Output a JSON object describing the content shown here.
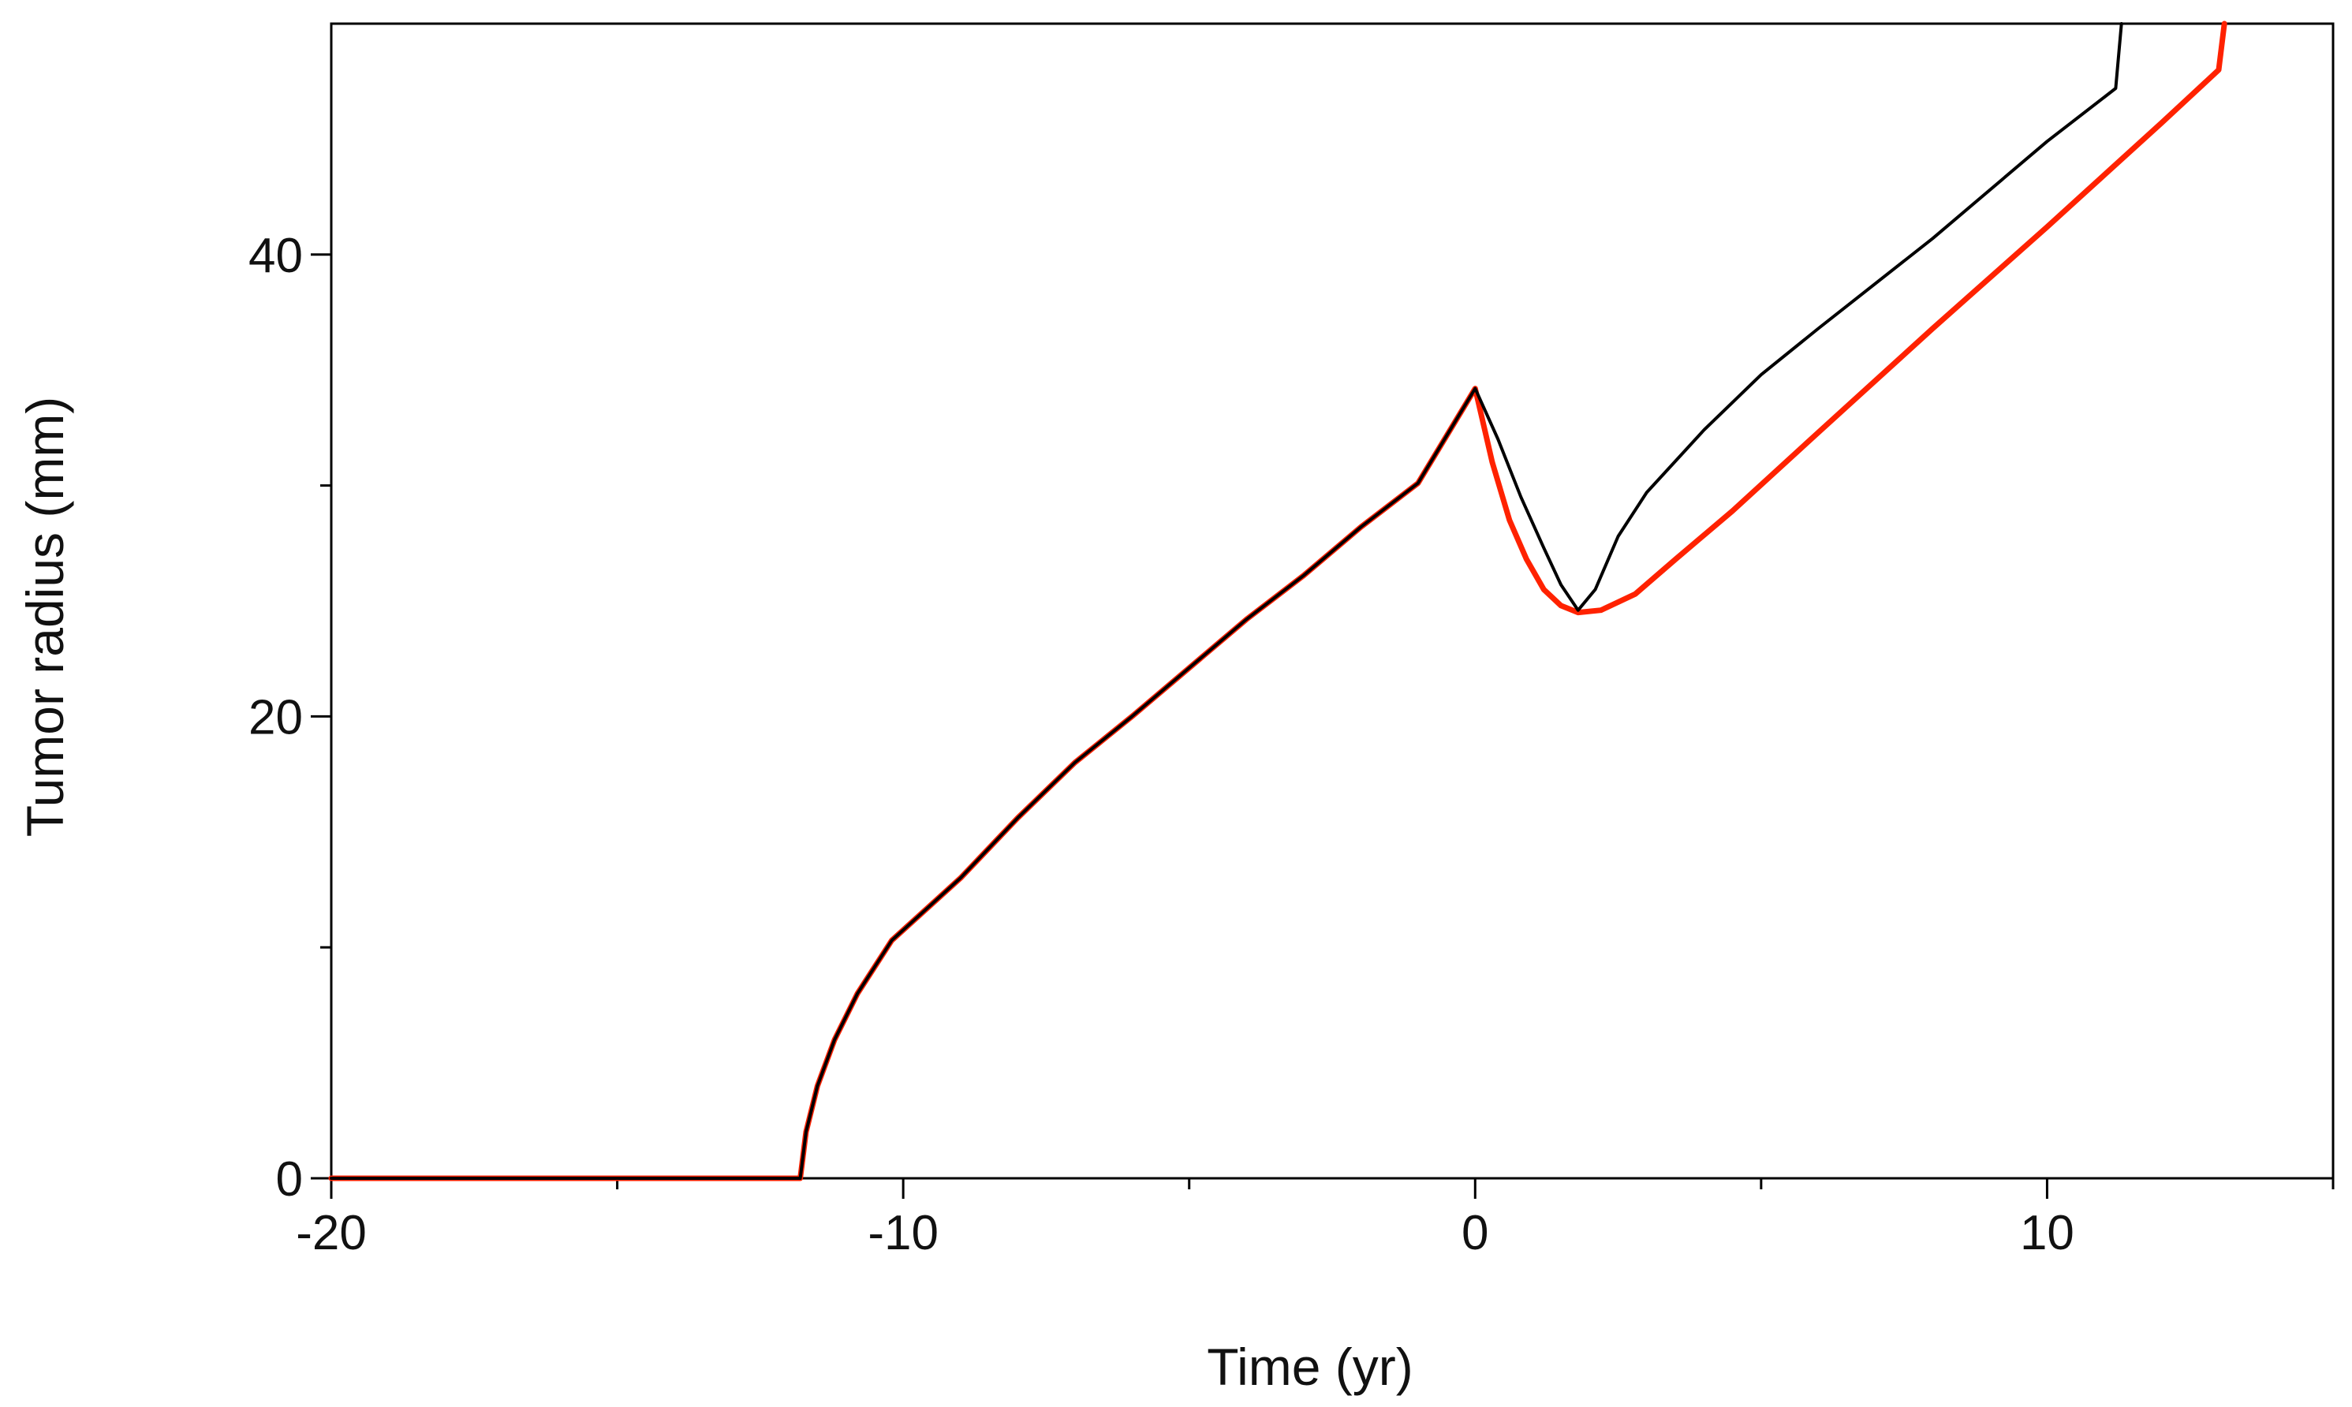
{
  "chart_data": {
    "type": "line",
    "title": "",
    "xlabel": "Time (yr)",
    "ylabel": "Tumor radius (mm)",
    "xlim": [
      -20,
      15
    ],
    "ylim": [
      0,
      50
    ],
    "x_major_ticks": [
      -20,
      -10,
      0,
      10
    ],
    "x_minor_ticks": [
      -15,
      -5,
      5,
      15
    ],
    "x_tick_labels": [
      "-20",
      "-10",
      "0",
      "10"
    ],
    "y_major_ticks": [
      0,
      20,
      40
    ],
    "y_minor_ticks": [
      10,
      30
    ],
    "y_tick_labels": [
      "0",
      "20",
      "40"
    ],
    "grid": false,
    "legend": "none",
    "series": [
      {
        "color": "#ff2200",
        "points": [
          [
            -20,
            0
          ],
          [
            -11.8,
            0
          ],
          [
            -11.7,
            2
          ],
          [
            -11.5,
            4
          ],
          [
            -11.2,
            6
          ],
          [
            -10.8,
            8
          ],
          [
            -10.2,
            10.3
          ],
          [
            -9,
            13
          ],
          [
            -8,
            15.6
          ],
          [
            -7,
            18
          ],
          [
            -6,
            20
          ],
          [
            -5,
            22.1
          ],
          [
            -4,
            24.2
          ],
          [
            -3,
            26.1
          ],
          [
            -2,
            28.2
          ],
          [
            -1,
            30.1
          ],
          [
            0,
            34.2
          ],
          [
            0.3,
            31
          ],
          [
            0.6,
            28.5
          ],
          [
            0.9,
            26.8
          ],
          [
            1.2,
            25.5
          ],
          [
            1.5,
            24.8
          ],
          [
            1.8,
            24.5
          ],
          [
            2.2,
            24.6
          ],
          [
            2.8,
            25.3
          ],
          [
            3.5,
            26.8
          ],
          [
            4.5,
            28.9
          ],
          [
            6,
            32.3
          ],
          [
            8,
            36.8
          ],
          [
            10,
            41.2
          ],
          [
            12,
            45.7
          ],
          [
            13,
            48
          ],
          [
            13.1,
            50
          ]
        ]
      },
      {
        "color": "#000000",
        "points": [
          [
            -20,
            0
          ],
          [
            -11.8,
            0
          ],
          [
            -11.7,
            2
          ],
          [
            -11.5,
            4
          ],
          [
            -11.2,
            6
          ],
          [
            -10.8,
            8
          ],
          [
            -10.2,
            10.3
          ],
          [
            -9,
            13
          ],
          [
            -8,
            15.6
          ],
          [
            -7,
            18
          ],
          [
            -6,
            20
          ],
          [
            -5,
            22.1
          ],
          [
            -4,
            24.2
          ],
          [
            -3,
            26.1
          ],
          [
            -2,
            28.2
          ],
          [
            -1,
            30.1
          ],
          [
            0,
            34.2
          ],
          [
            0.4,
            32
          ],
          [
            0.8,
            29.5
          ],
          [
            1.2,
            27.3
          ],
          [
            1.5,
            25.7
          ],
          [
            1.8,
            24.6
          ],
          [
            2.1,
            25.5
          ],
          [
            2.5,
            27.8
          ],
          [
            3,
            29.7
          ],
          [
            4,
            32.4
          ],
          [
            5,
            34.8
          ],
          [
            6,
            36.8
          ],
          [
            8,
            40.7
          ],
          [
            10,
            44.9
          ],
          [
            11.2,
            47.2
          ],
          [
            11.3,
            50
          ]
        ]
      }
    ]
  }
}
